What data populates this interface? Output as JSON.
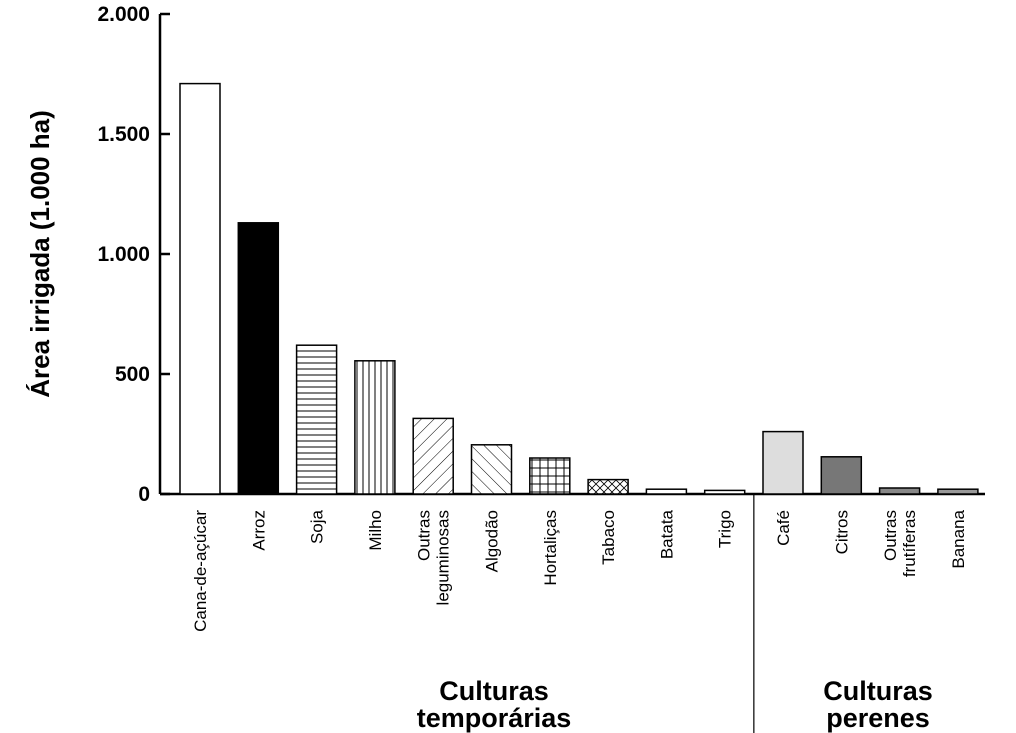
{
  "chart_data": {
    "type": "bar",
    "title": "",
    "xlabel": "",
    "ylabel": "Área irrigada (1.000 ha)",
    "ylim": [
      0,
      2000
    ],
    "yticks": [
      {
        "value": 0,
        "label": "0"
      },
      {
        "value": 500,
        "label": "500"
      },
      {
        "value": 1000,
        "label": "1.000"
      },
      {
        "value": 1500,
        "label": "1.500"
      },
      {
        "value": 2000,
        "label": "2.000"
      }
    ],
    "grid": false,
    "categories": [
      [
        "Cana-de-açúcar"
      ],
      [
        "Arroz"
      ],
      [
        "Soja"
      ],
      [
        "Milho"
      ],
      [
        "Outras",
        "leguminosas"
      ],
      [
        "Algodão"
      ],
      [
        "Hortaliças"
      ],
      [
        "Tabaco"
      ],
      [
        "Batata"
      ],
      [
        "Trigo"
      ],
      [
        "Café"
      ],
      [
        "Citros"
      ],
      [
        "Outras",
        "frutíferas"
      ],
      [
        "Banana"
      ]
    ],
    "values": [
      1710,
      1130,
      620,
      555,
      315,
      205,
      150,
      60,
      20,
      15,
      260,
      155,
      25,
      20
    ],
    "fills": [
      "white",
      "black",
      "hlines",
      "vlines",
      "diag-back",
      "diag-fwd",
      "grid",
      "crosshatch",
      "white",
      "white",
      "#dddddd",
      "#777777",
      "#888888",
      "#999999"
    ],
    "groups": [
      {
        "label_lines": [
          "Culturas",
          "temporárias"
        ],
        "start": 0,
        "end": 9
      },
      {
        "label_lines": [
          "Culturas",
          "perenes"
        ],
        "start": 10,
        "end": 13
      }
    ]
  }
}
